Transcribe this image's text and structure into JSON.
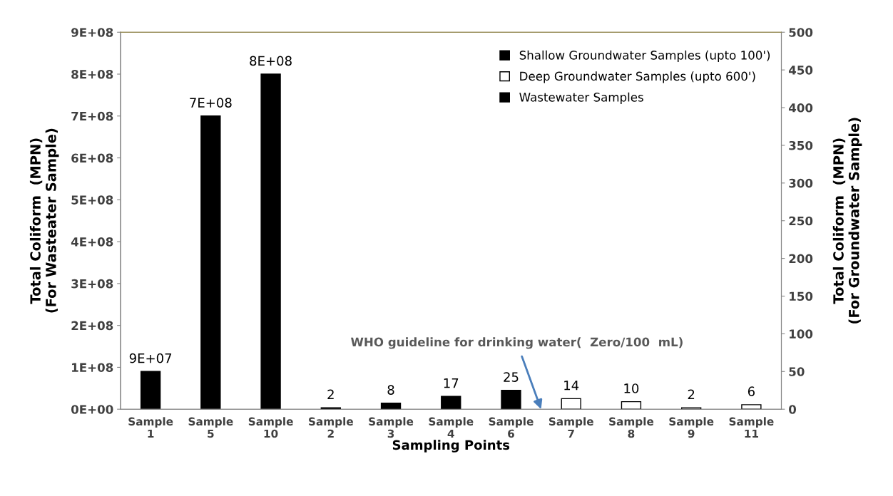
{
  "chart_data": {
    "type": "bar",
    "categories": [
      "Sample\n1",
      "Sample\n5",
      "Sample\n10",
      "Sample\n2",
      "Sample\n3",
      "Sample\n4",
      "Sample\n6",
      "Sample\n7",
      "Sample\n8",
      "Sample\n9",
      "Sample\n11"
    ],
    "series": [
      {
        "name": "Shallow Groundwater Samples (upto 100')",
        "color": "#000000",
        "axis": "y2",
        "values": [
          null,
          null,
          null,
          2,
          8,
          17,
          25,
          null,
          null,
          null,
          null
        ],
        "value_labels": [
          null,
          null,
          null,
          "2",
          "8",
          "17",
          "25",
          null,
          null,
          null,
          null
        ]
      },
      {
        "name": "Deep Groundwater Samples (upto 600')",
        "color": "#ffffff",
        "axis": "y2",
        "values": [
          null,
          null,
          null,
          null,
          null,
          null,
          null,
          14,
          10,
          2,
          6
        ],
        "value_labels": [
          null,
          null,
          null,
          null,
          null,
          null,
          null,
          "14",
          "10",
          "2",
          "6"
        ]
      },
      {
        "name": "Wastewater Samples",
        "color": "#000000",
        "axis": "y",
        "values": [
          90000000,
          700000000,
          800000000,
          null,
          null,
          null,
          null,
          null,
          null,
          null,
          null
        ],
        "value_labels": [
          "9E+07",
          "7E+08",
          "8E+08",
          null,
          null,
          null,
          null,
          null,
          null,
          null,
          null
        ]
      }
    ],
    "xlabel": "Sampling Points",
    "ylabel": "Total Coliform  (MPN)\n(For Wasteater Sample)",
    "y2label": "Total Coliform  (MPN)\n(For Groundwater Sample)",
    "ylim": [
      0,
      900000000
    ],
    "yticks": [
      {
        "value": 0,
        "label": "0E+00"
      },
      {
        "value": 100000000,
        "label": "1E+08"
      },
      {
        "value": 200000000,
        "label": "2E+08"
      },
      {
        "value": 300000000,
        "label": "3E+08"
      },
      {
        "value": 400000000,
        "label": "4E+08"
      },
      {
        "value": 500000000,
        "label": "5E+08"
      },
      {
        "value": 600000000,
        "label": "6E+08"
      },
      {
        "value": 700000000,
        "label": "7E+08"
      },
      {
        "value": 800000000,
        "label": "8E+08"
      },
      {
        "value": 900000000,
        "label": "9E+08"
      }
    ],
    "y2lim": [
      0,
      500
    ],
    "y2ticks": [
      0,
      50,
      100,
      150,
      200,
      250,
      300,
      350,
      400,
      450,
      500
    ],
    "annotations": [
      "WHO guideline for drinking water(  Zero/100  mL)"
    ],
    "legend": "top right",
    "grid": false
  }
}
